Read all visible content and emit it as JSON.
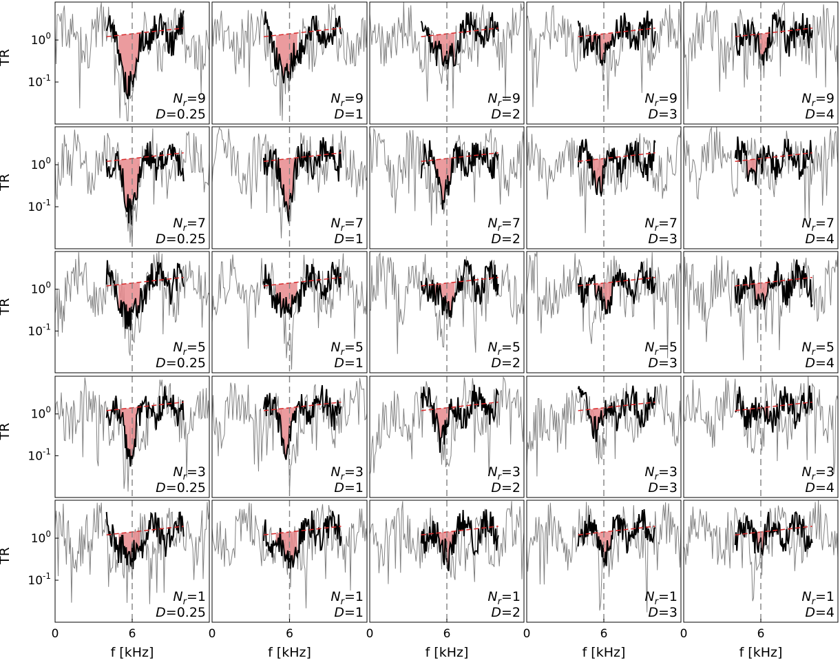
{
  "chart_data": {
    "type": "line",
    "layout": "5x5 grid of panels",
    "xlabel": "f [kHz]",
    "ylabel": "TR",
    "x_unit": "kHz",
    "xlim": [
      0,
      12
    ],
    "x_ticks": [
      0,
      6
    ],
    "y_scale": "log",
    "ylim": [
      0.01,
      8
    ],
    "y_tick_labels": [
      "10^0",
      "10^-1"
    ],
    "y_ticks": [
      1,
      0.1
    ],
    "reference_line_x": 6,
    "trend_fit_range": [
      4,
      10
    ],
    "series_styles": [
      {
        "role": "raw transmission spectrum",
        "color": "#808080"
      },
      {
        "role": "smoothed spectrum",
        "color": "#000000"
      },
      {
        "role": "trend fit (dashed)",
        "color": "#d62728"
      },
      {
        "role": "shaded band-gap region",
        "color": "#e8898d"
      }
    ],
    "panels": [
      {
        "row": 0,
        "col": 0,
        "label_Nr": "9",
        "label_D": "0.25",
        "Nr": 9,
        "D": 0.25
      },
      {
        "row": 0,
        "col": 1,
        "label_Nr": "9",
        "label_D": "1",
        "Nr": 9,
        "D": 1
      },
      {
        "row": 0,
        "col": 2,
        "label_Nr": "9",
        "label_D": "2",
        "Nr": 9,
        "D": 2
      },
      {
        "row": 0,
        "col": 3,
        "label_Nr": "9",
        "label_D": "3",
        "Nr": 9,
        "D": 3
      },
      {
        "row": 0,
        "col": 4,
        "label_Nr": "9",
        "label_D": "4",
        "Nr": 9,
        "D": 4
      },
      {
        "row": 1,
        "col": 0,
        "label_Nr": "7",
        "label_D": "0.25",
        "Nr": 7,
        "D": 0.25
      },
      {
        "row": 1,
        "col": 1,
        "label_Nr": "7",
        "label_D": "1",
        "Nr": 7,
        "D": 1
      },
      {
        "row": 1,
        "col": 2,
        "label_Nr": "7",
        "label_D": "2",
        "Nr": 7,
        "D": 2
      },
      {
        "row": 1,
        "col": 3,
        "label_Nr": "7",
        "label_D": "3",
        "Nr": 7,
        "D": 3
      },
      {
        "row": 1,
        "col": 4,
        "label_Nr": "7",
        "label_D": "4",
        "Nr": 7,
        "D": 4
      },
      {
        "row": 2,
        "col": 0,
        "label_Nr": "5",
        "label_D": "0.25",
        "Nr": 5,
        "D": 0.25
      },
      {
        "row": 2,
        "col": 1,
        "label_Nr": "5",
        "label_D": "1",
        "Nr": 5,
        "D": 1
      },
      {
        "row": 2,
        "col": 2,
        "label_Nr": "5",
        "label_D": "2",
        "Nr": 5,
        "D": 2
      },
      {
        "row": 2,
        "col": 3,
        "label_Nr": "5",
        "label_D": "3",
        "Nr": 5,
        "D": 3
      },
      {
        "row": 2,
        "col": 4,
        "label_Nr": "5",
        "label_D": "4",
        "Nr": 5,
        "D": 4
      },
      {
        "row": 3,
        "col": 0,
        "label_Nr": "3",
        "label_D": "0.25",
        "Nr": 3,
        "D": 0.25
      },
      {
        "row": 3,
        "col": 1,
        "label_Nr": "3",
        "label_D": "1",
        "Nr": 3,
        "D": 1
      },
      {
        "row": 3,
        "col": 2,
        "label_Nr": "3",
        "label_D": "2",
        "Nr": 3,
        "D": 2
      },
      {
        "row": 3,
        "col": 3,
        "label_Nr": "3",
        "label_D": "3",
        "Nr": 3,
        "D": 3
      },
      {
        "row": 3,
        "col": 4,
        "label_Nr": "3",
        "label_D": "4",
        "Nr": 3,
        "D": 4
      },
      {
        "row": 4,
        "col": 0,
        "label_Nr": "1",
        "label_D": "0.25",
        "Nr": 1,
        "D": 0.25
      },
      {
        "row": 4,
        "col": 1,
        "label_Nr": "1",
        "label_D": "1",
        "Nr": 1,
        "D": 1
      },
      {
        "row": 4,
        "col": 2,
        "label_Nr": "1",
        "label_D": "2",
        "Nr": 1,
        "D": 2
      },
      {
        "row": 4,
        "col": 3,
        "label_Nr": "1",
        "label_D": "3",
        "Nr": 1,
        "D": 3
      },
      {
        "row": 4,
        "col": 4,
        "label_Nr": "1",
        "label_D": "4",
        "Nr": 1,
        "D": 4
      }
    ]
  }
}
